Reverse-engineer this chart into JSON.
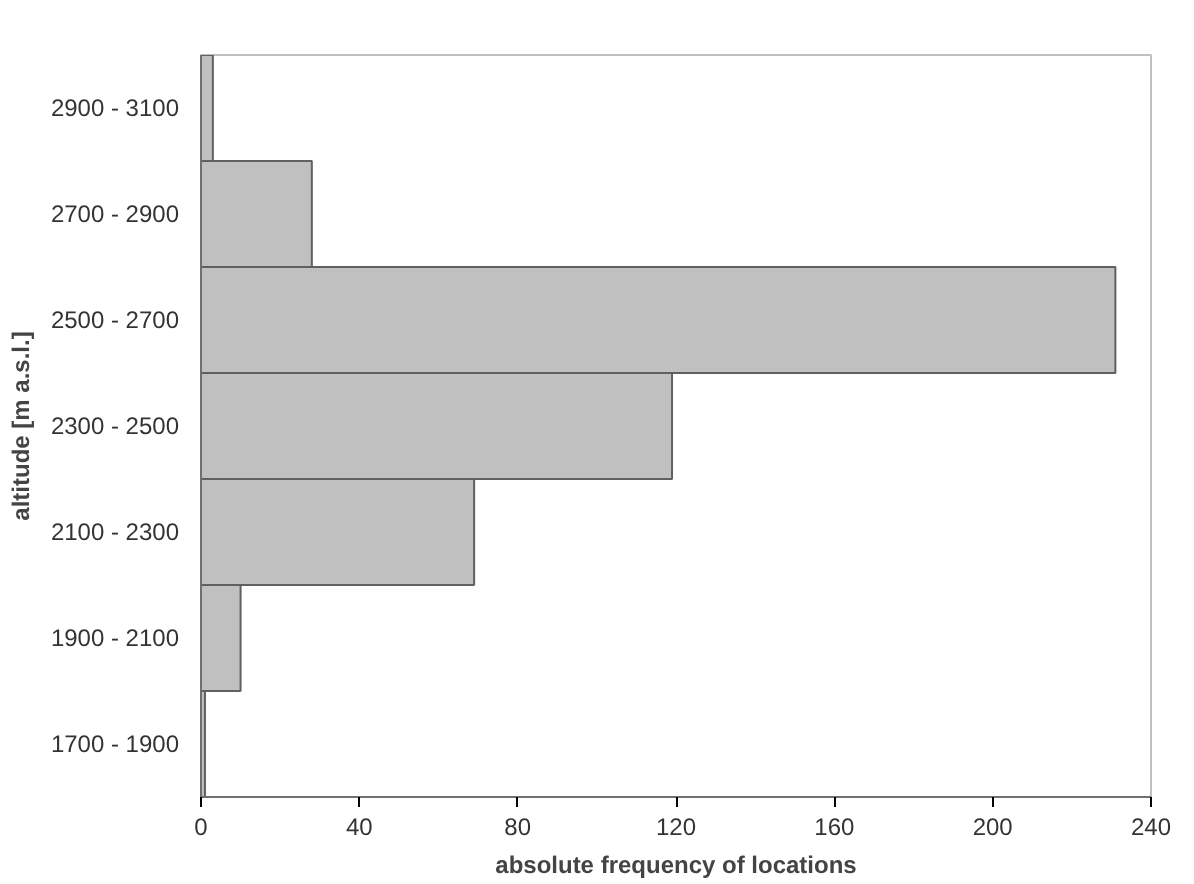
{
  "chart_data": {
    "type": "bar",
    "orientation": "horizontal",
    "xlabel": "absolute frequency of locations",
    "ylabel": "altitude [m a.s.l.]",
    "categories": [
      "2900 - 3100",
      "2700 - 2900",
      "2500 - 2700",
      "2300 - 2500",
      "2100 - 2300",
      "1900 - 2100",
      "1700 - 1900"
    ],
    "values": [
      3,
      28,
      231,
      119,
      69,
      10,
      1
    ],
    "color": "#c0c0c0",
    "xlim": [
      0,
      240
    ],
    "xticks": [
      0,
      40,
      80,
      120,
      160,
      200,
      240
    ],
    "grid": false
  }
}
